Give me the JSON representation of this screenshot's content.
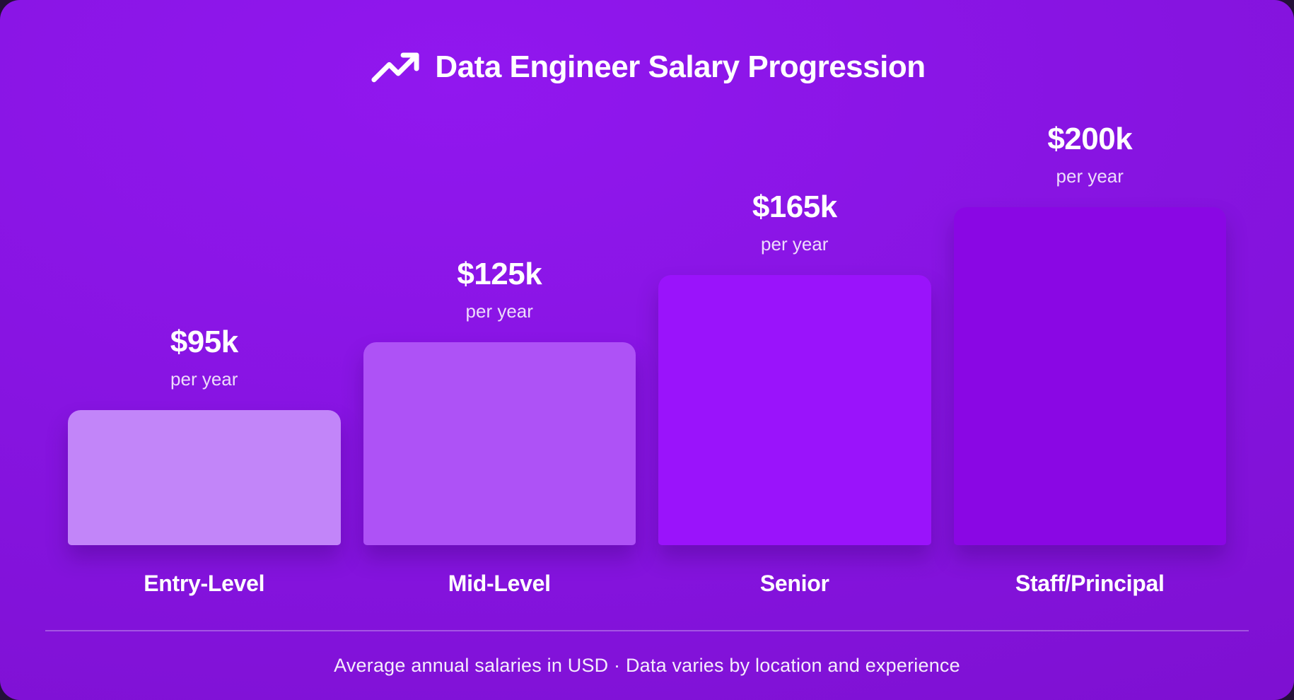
{
  "header": {
    "title": "Data Engineer Salary Progression",
    "icon": "trending-up-icon"
  },
  "chart_data": {
    "type": "bar",
    "orientation": "vertical",
    "title": "Data Engineer Salary Progression",
    "categories": [
      "Entry-Level",
      "Mid-Level",
      "Senior",
      "Staff/Principal"
    ],
    "values": [
      95,
      125,
      165,
      200
    ],
    "value_labels": [
      "$95k",
      "$125k",
      "$165k",
      "$200k"
    ],
    "value_sublabel": "per year",
    "unit": "USD thousands per year",
    "bar_colors": [
      "#c285f9",
      "#ae52f6",
      "#9a13fb",
      "#8a07e4"
    ],
    "grid": false,
    "legend": "none",
    "footnote": "Average annual salaries in USD · Data varies by location and experience"
  },
  "footer": {
    "note": "Average annual salaries in USD · Data varies by location and experience"
  },
  "colors": {
    "card_background_top": "#9117ef",
    "card_background_bottom": "#7a0ec9",
    "outer_background": "#241038",
    "divider": "rgba(255,255,255,0.28)",
    "text_primary": "#ffffff",
    "text_secondary": "rgba(255,255,255,0.85)"
  }
}
